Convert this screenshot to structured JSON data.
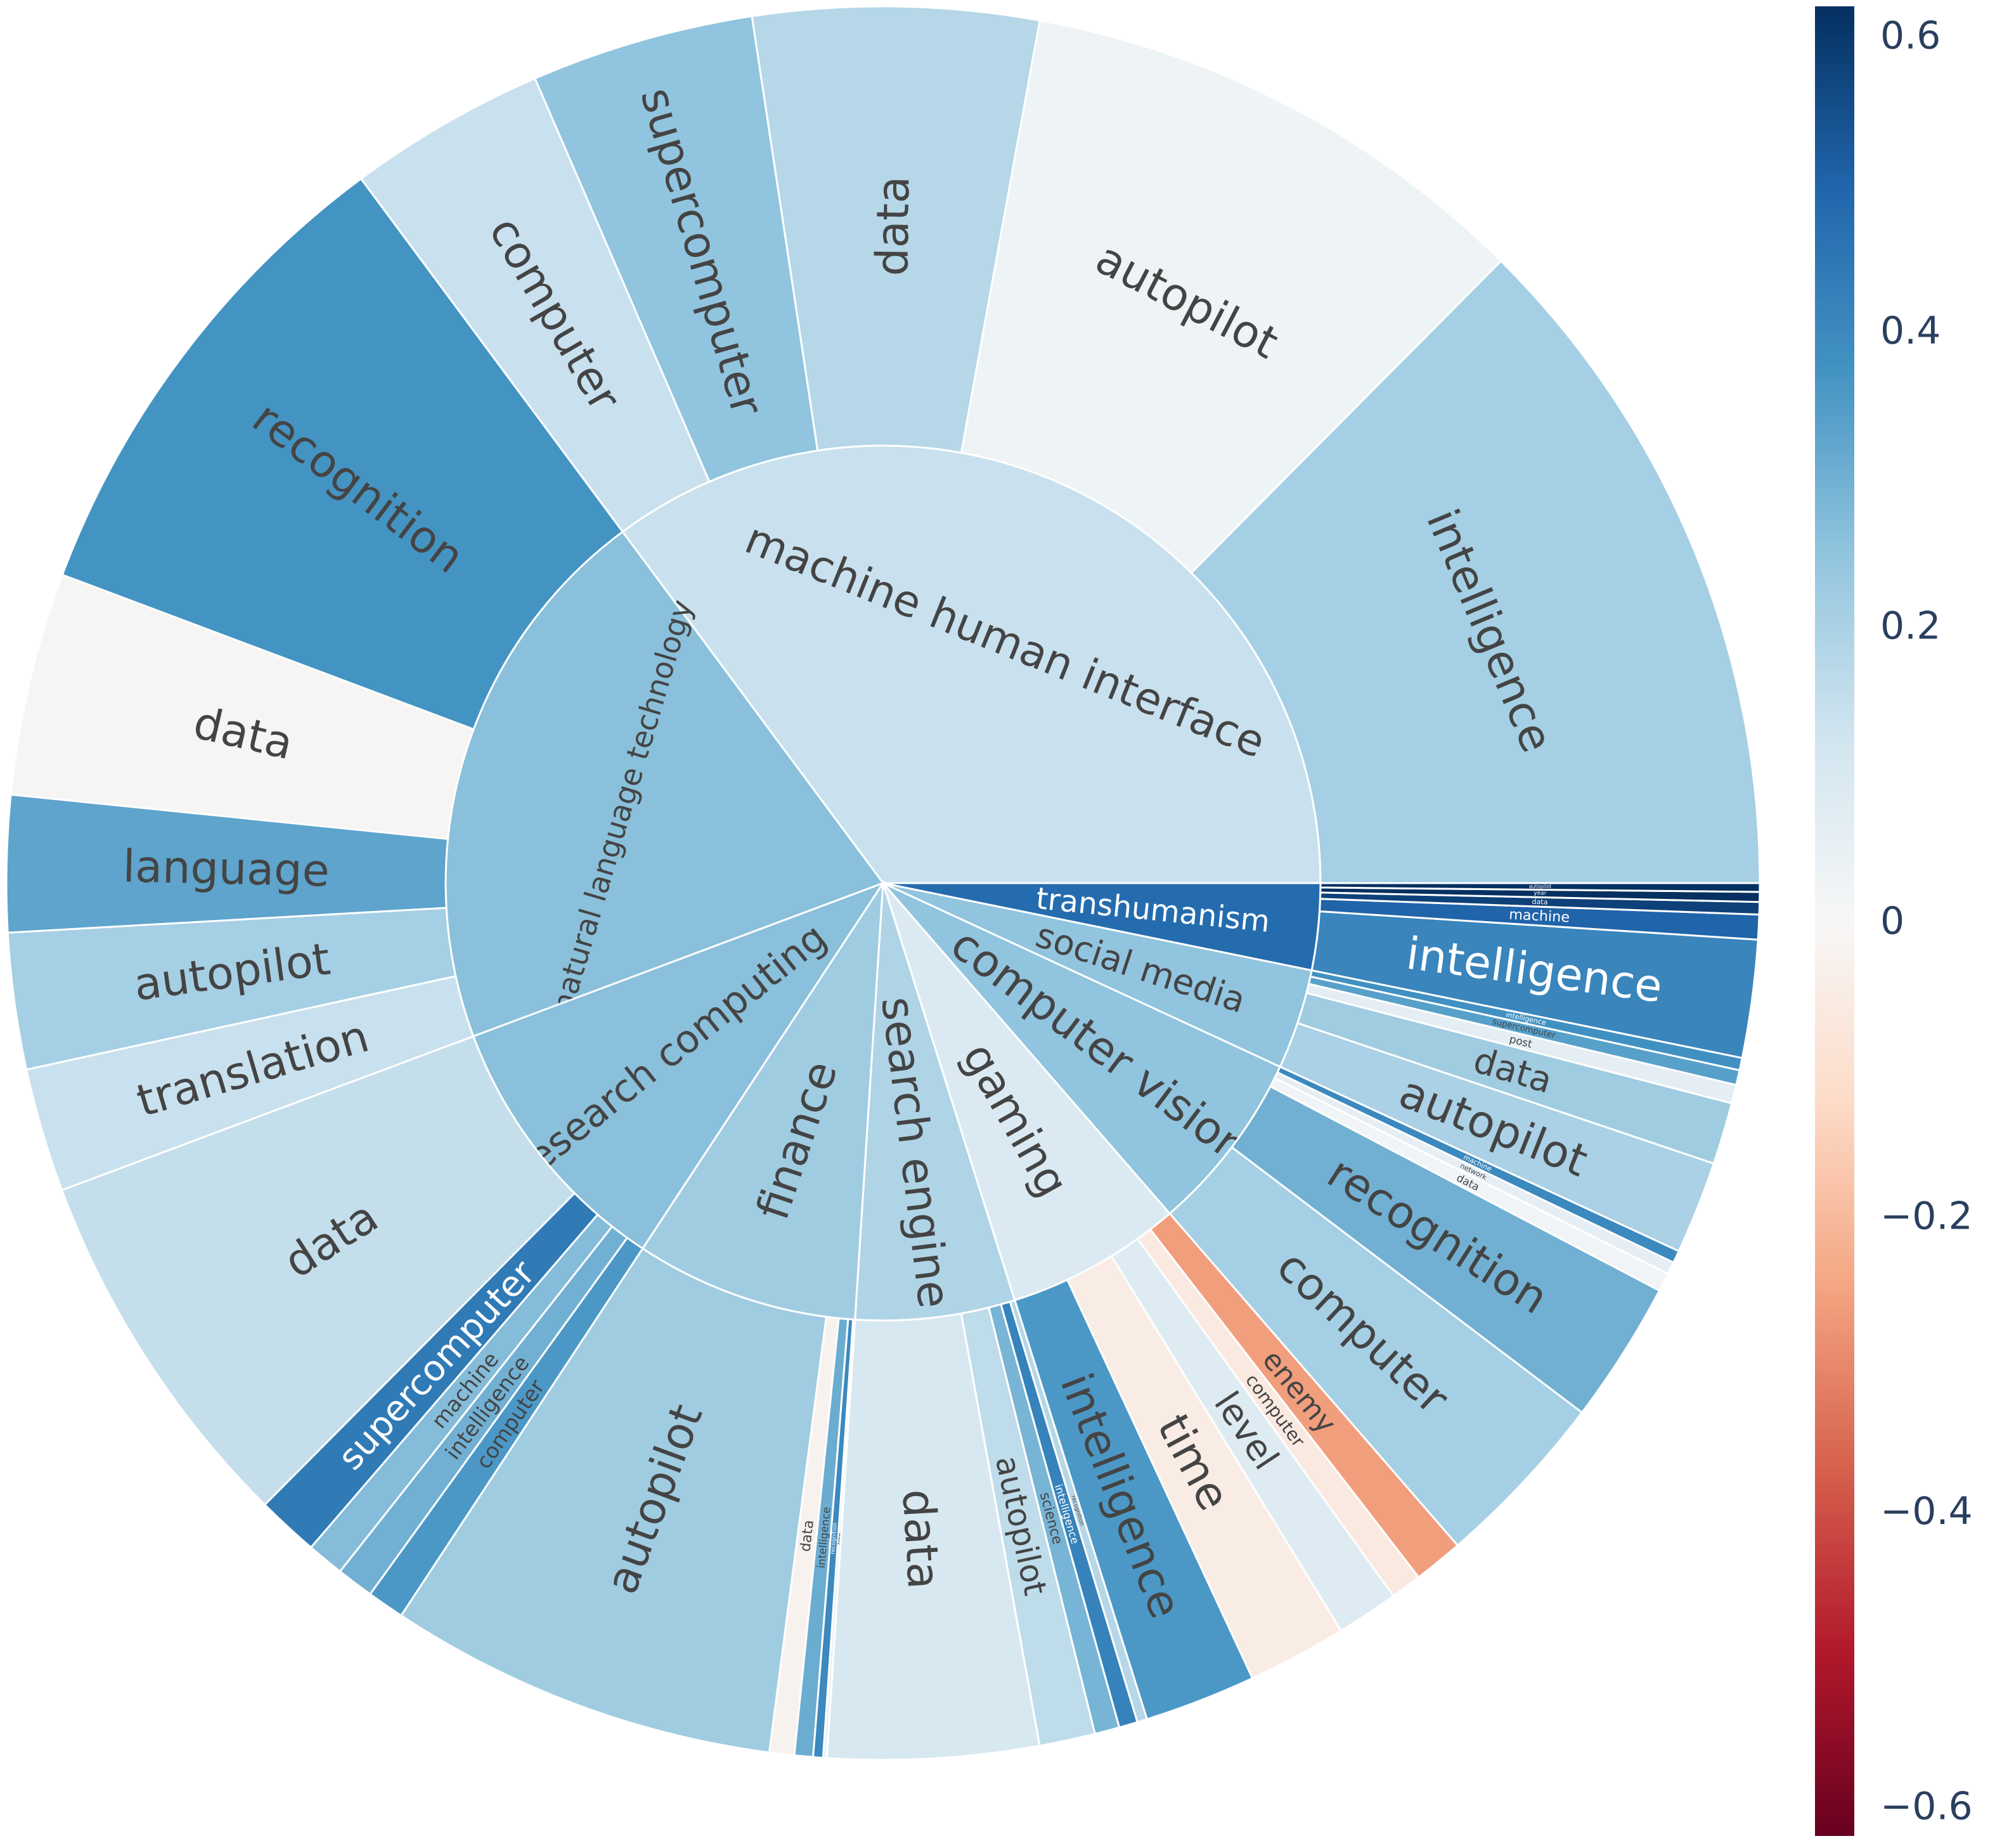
{
  "chart_data": {
    "type": "sunburst",
    "title": "",
    "colorscale": "RdBu",
    "color_range": [
      -0.62,
      0.62
    ],
    "colorbar": {
      "tick_labels": [
        "0.6",
        "0.4",
        "0.2",
        "0",
        "−0.2",
        "−0.4",
        "−0.6"
      ],
      "tick_values": [
        0.6,
        0.4,
        0.2,
        0,
        -0.2,
        -0.4,
        -0.6
      ]
    },
    "segments": [
      {
        "label": "machine human interface",
        "color_value": 0.14,
        "children": [
          {
            "label": "intelligence",
            "value": 55,
            "color_value": 0.21
          },
          {
            "label": "autopilot",
            "value": 42,
            "color_value": 0.03
          },
          {
            "label": "data",
            "value": 23,
            "color_value": 0.18
          },
          {
            "label": "supercomputer",
            "value": 18,
            "color_value": 0.25
          },
          {
            "label": "computer",
            "value": 16,
            "color_value": 0.14
          }
        ]
      },
      {
        "label": "natural language technology",
        "color_value": 0.26,
        "children": [
          {
            "label": "recognition",
            "value": 40,
            "color_value": 0.37
          },
          {
            "label": "data",
            "value": 18,
            "color_value": -0.01
          },
          {
            "label": "language",
            "value": 11,
            "color_value": 0.33
          },
          {
            "label": "autopilot",
            "value": 11,
            "color_value": 0.21
          },
          {
            "label": "translation",
            "value": 10,
            "color_value": 0.14
          }
        ]
      },
      {
        "label": "research computing",
        "color_value": 0.26,
        "children": [
          {
            "label": "data",
            "value": 30,
            "color_value": 0.15
          },
          {
            "label": "supercomputer",
            "value": 5,
            "color_value": 0.44
          },
          {
            "label": "machine",
            "value": 3,
            "color_value": 0.27
          },
          {
            "label": "intelligence",
            "value": 3,
            "color_value": 0.3
          },
          {
            "label": "computer",
            "value": 3,
            "color_value": 0.36
          }
        ]
      },
      {
        "label": "finance",
        "color_value": 0.22,
        "children": [
          {
            "label": "autopilot",
            "value": 31.5,
            "color_value": 0.22
          },
          {
            "label": "data",
            "value": 2,
            "color_value": -0.02
          },
          {
            "label": "intelligence",
            "value": 1.5,
            "color_value": 0.31
          },
          {
            "label": "recognition",
            "value": 0.8,
            "color_value": 0.4
          },
          {
            "label": "time",
            "value": 0.3,
            "color_value": 0.05
          }
        ]
      },
      {
        "label": "search engine",
        "color_value": 0.19,
        "children": [
          {
            "label": "data",
            "value": 17,
            "color_value": 0.1
          },
          {
            "label": "autopilot",
            "value": 4.5,
            "color_value": 0.16
          },
          {
            "label": "science",
            "value": 2,
            "color_value": 0.29
          },
          {
            "label": "intelligence",
            "value": 1.5,
            "color_value": 0.42
          },
          {
            "label": "recognition",
            "value": 0.8,
            "color_value": 0.18
          }
        ]
      },
      {
        "label": "gaming",
        "color_value": 0.09,
        "children": [
          {
            "label": "intelligence",
            "value": 9,
            "color_value": 0.36
          },
          {
            "label": "time",
            "value": 8,
            "color_value": -0.05
          },
          {
            "label": "level",
            "value": 5,
            "color_value": 0.08
          },
          {
            "label": "computer",
            "value": 2.5,
            "color_value": -0.06
          },
          {
            "label": "enemy",
            "value": 4,
            "color_value": -0.26
          }
        ]
      },
      {
        "label": "computer vision",
        "color_value": 0.25,
        "children": [
          {
            "label": "computer",
            "value": 14.5,
            "color_value": 0.21
          },
          {
            "label": "recognition",
            "value": 11.5,
            "color_value": 0.3
          },
          {
            "label": "data",
            "value": 1.5,
            "color_value": 0.02
          },
          {
            "label": "network",
            "value": 1,
            "color_value": 0.06
          },
          {
            "label": "machine",
            "value": 1,
            "color_value": 0.4
          }
        ]
      },
      {
        "label": "social media",
        "color_value": 0.25,
        "children": [
          {
            "label": "autopilot",
            "value": 7.5,
            "color_value": 0.2
          },
          {
            "label": "data",
            "value": 5,
            "color_value": 0.22
          },
          {
            "label": "post",
            "value": 1.5,
            "color_value": 0.06
          },
          {
            "label": "supercomputer",
            "value": 1.2,
            "color_value": 0.34
          },
          {
            "label": "intelligence",
            "value": 1,
            "color_value": 0.38
          }
        ]
      },
      {
        "label": "transhumanism",
        "color_value": 0.48,
        "children": [
          {
            "label": "intelligence",
            "value": 9.5,
            "color_value": 0.41
          },
          {
            "label": "machine",
            "value": 2,
            "color_value": 0.5
          },
          {
            "label": "data",
            "value": 1,
            "color_value": 0.58
          },
          {
            "label": "year",
            "value": 0.8,
            "color_value": 0.62
          },
          {
            "label": "autopilot",
            "value": 0.7,
            "color_value": 0.62
          }
        ]
      }
    ]
  }
}
